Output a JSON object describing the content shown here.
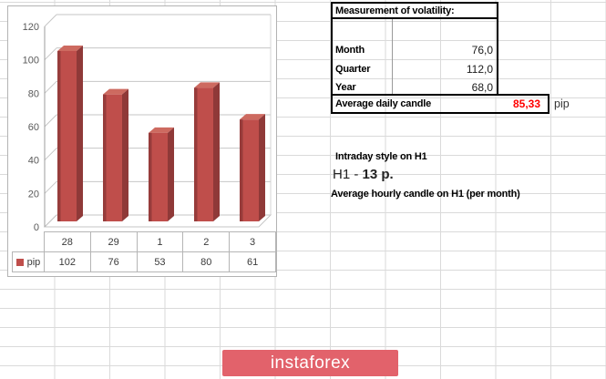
{
  "chart_data": {
    "type": "bar",
    "style": "3d-column",
    "categories": [
      "28",
      "29",
      "1",
      "2",
      "3"
    ],
    "series": [
      {
        "name": "pip",
        "values": [
          102,
          76,
          53,
          80,
          61
        ]
      }
    ],
    "legend_label": "pip",
    "ylim": [
      0,
      120
    ],
    "yticks": [
      0,
      20,
      40,
      60,
      80,
      100,
      120
    ],
    "grid": true,
    "legend_position": "bottom-left-table",
    "bar_color": "#bf4e4b",
    "bar_color_dark": "#8f3938",
    "bar_color_top": "#cd6a60"
  },
  "volatility_table": {
    "title": "Measurement of volatility:",
    "rows": [
      {
        "label": "Month",
        "value": "76,0"
      },
      {
        "label": "Quarter",
        "value": "112,0"
      },
      {
        "label": "Year",
        "value": "68,0"
      }
    ],
    "summary_label": "Average daily candle",
    "summary_value": "85,33",
    "summary_unit": "pip",
    "summary_value_color": "#ff0000"
  },
  "notes": {
    "intraday_title": "Intraday style on H1",
    "intraday_prefix": "H1 - ",
    "intraday_value": "13 p.",
    "hourly_title": "Average hourly candle on H1 (per month)"
  },
  "branding": {
    "logo_text": "instaforex",
    "logo_color": "#e2626b"
  }
}
